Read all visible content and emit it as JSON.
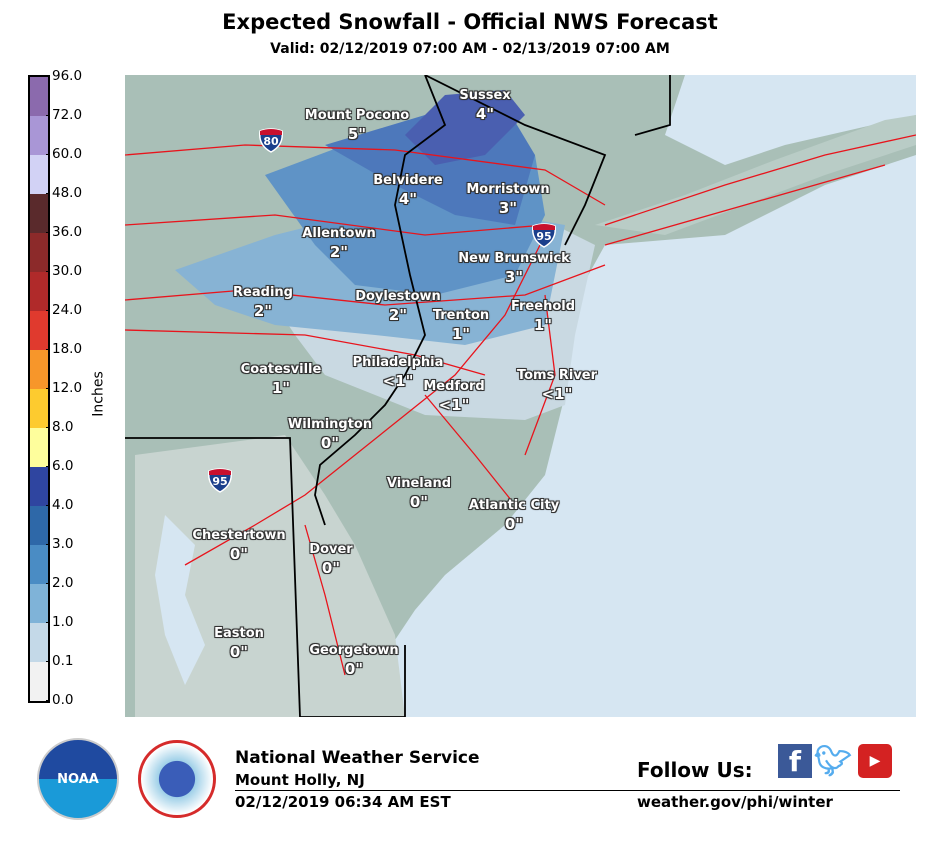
{
  "header": {
    "title": "Expected Snowfall - Official NWS Forecast",
    "subtitle": "Valid: 02/12/2019 07:00 AM - 02/13/2019 07:00 AM"
  },
  "legend": {
    "label": "Inches",
    "ticks": [
      "96.0",
      "72.0",
      "60.0",
      "48.0",
      "36.0",
      "30.0",
      "24.0",
      "18.0",
      "12.0",
      "8.0",
      "6.0",
      "4.0",
      "3.0",
      "2.0",
      "1.0",
      "0.1",
      "0.0"
    ],
    "colors": [
      "#8b6aad",
      "#a996d6",
      "#d2d2f5",
      "#5a2a2c",
      "#8c2a2a",
      "#b02a2a",
      "#e03a2e",
      "#f7962a",
      "#fdcb2f",
      "#fefe9c",
      "#2f45a0",
      "#2e68a8",
      "#4a8cc4",
      "#7fb3d8",
      "#c4d9e8",
      "#f2f2f2"
    ]
  },
  "map": {
    "colors": {
      "land": "#a9bfb7",
      "ocean": "#d6e6f2",
      "snow_0_1": "#c9d9e2",
      "snow_1_2": "#87b3d4",
      "snow_2_3": "#5f93c6",
      "snow_3_4": "#4d78bb",
      "snow_4_6": "#4a5fb0",
      "roads": "#e8141c",
      "borders": "#000000"
    },
    "cities": [
      {
        "name": "Mount Pocono",
        "amount": "5\""
      },
      {
        "name": "Sussex",
        "amount": "4\""
      },
      {
        "name": "Belvidere",
        "amount": "4\""
      },
      {
        "name": "Morristown",
        "amount": "3\""
      },
      {
        "name": "Allentown",
        "amount": "2\""
      },
      {
        "name": "New Brunswick",
        "amount": "3\""
      },
      {
        "name": "Reading",
        "amount": "2\""
      },
      {
        "name": "Doylestown",
        "amount": "2\""
      },
      {
        "name": "Trenton",
        "amount": "1\""
      },
      {
        "name": "Freehold",
        "amount": "1\""
      },
      {
        "name": "Coatesville",
        "amount": "1\""
      },
      {
        "name": "Philadelphia",
        "amount": "<1\""
      },
      {
        "name": "Medford",
        "amount": "<1\""
      },
      {
        "name": "Toms River",
        "amount": "<1\""
      },
      {
        "name": "Wilmington",
        "amount": "0\""
      },
      {
        "name": "Vineland",
        "amount": "0\""
      },
      {
        "name": "Atlantic City",
        "amount": "0\""
      },
      {
        "name": "Chestertown",
        "amount": "0\""
      },
      {
        "name": "Dover",
        "amount": "0\""
      },
      {
        "name": "Easton",
        "amount": "0\""
      },
      {
        "name": "Georgetown",
        "amount": "0\""
      }
    ],
    "interstates": [
      "80",
      "95",
      "95"
    ]
  },
  "footer": {
    "office": "National Weather Service",
    "location": "Mount Holly, NJ",
    "issued": "02/12/2019 06:34 AM EST",
    "follow": "Follow Us:",
    "url": "weather.gov/phi/winter",
    "noaa_logo": "NOAA",
    "nws_logo": "NATIONAL WEATHER SERVICE",
    "social": [
      "facebook-icon",
      "twitter-icon",
      "youtube-icon"
    ]
  }
}
